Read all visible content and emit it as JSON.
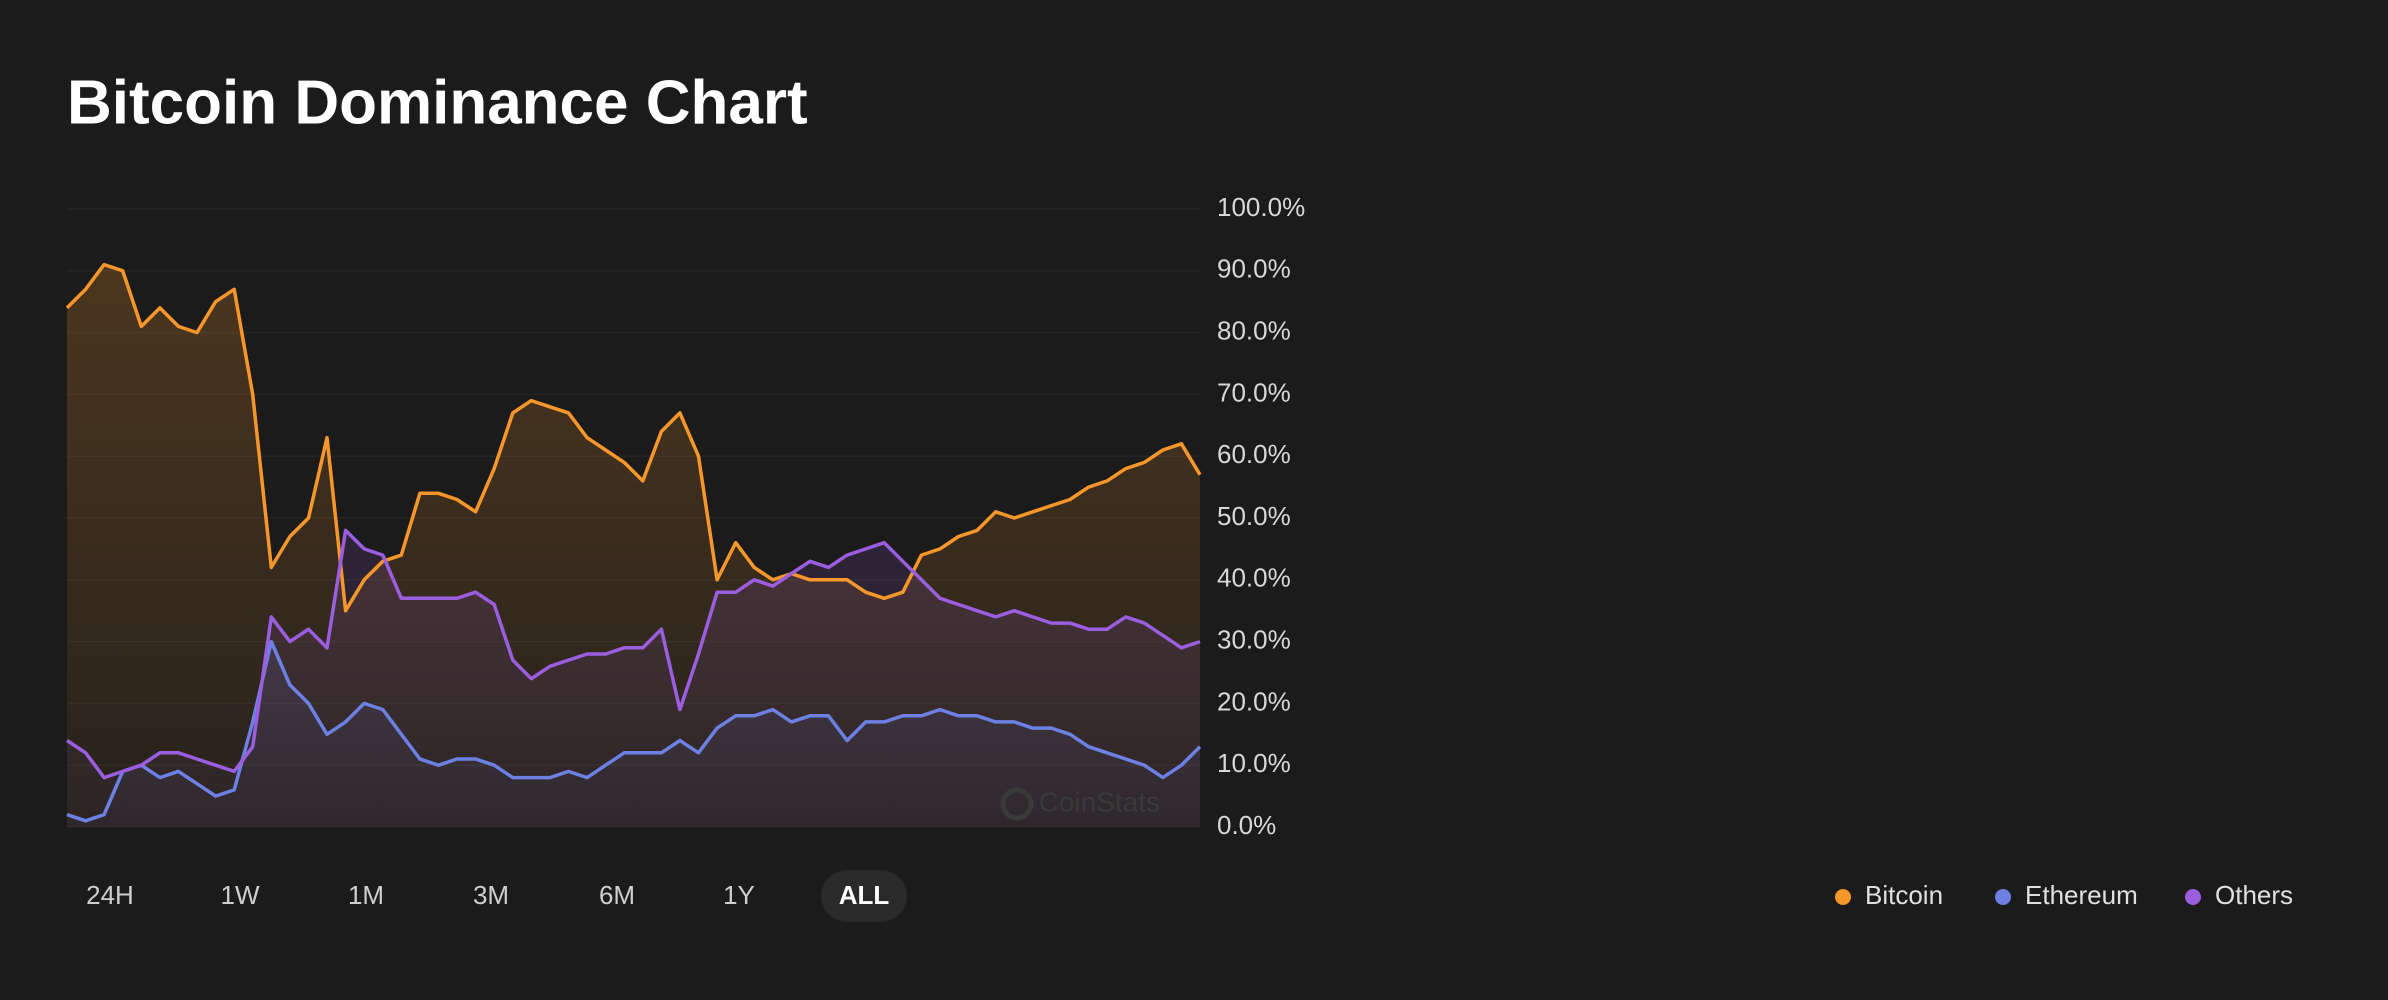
{
  "header": {
    "title": "Bitcoin Dominance Chart"
  },
  "chart_data": {
    "type": "line",
    "watermark": "CoinStats",
    "categories": [
      null,
      null,
      null,
      null,
      null,
      null,
      null,
      null,
      null,
      null,
      null,
      null,
      null,
      null,
      null,
      null,
      null,
      null,
      null,
      null,
      null,
      null,
      null,
      null,
      null,
      null,
      null,
      null,
      null,
      null,
      null,
      null,
      null,
      null,
      null,
      null,
      null,
      null,
      null,
      null,
      null,
      null,
      null,
      null,
      null,
      null,
      null,
      null,
      null,
      null,
      null,
      null,
      null,
      null,
      null,
      null,
      null,
      null,
      null,
      null,
      null,
      null
    ],
    "ylim": [
      0,
      100
    ],
    "yticks": [
      {
        "value": 0,
        "label": "0.0%"
      },
      {
        "value": 10,
        "label": "10.0%"
      },
      {
        "value": 20,
        "label": "20.0%"
      },
      {
        "value": 30,
        "label": "30.0%"
      },
      {
        "value": 40,
        "label": "40.0%"
      },
      {
        "value": 50,
        "label": "50.0%"
      },
      {
        "value": 60,
        "label": "60.0%"
      },
      {
        "value": 70,
        "label": "70.0%"
      },
      {
        "value": 80,
        "label": "80.0%"
      },
      {
        "value": 90,
        "label": "90.0%"
      },
      {
        "value": 100,
        "label": "100.0%"
      }
    ],
    "grid": true,
    "legend": "bottom-right",
    "area": true,
    "series": [
      {
        "name": "Bitcoin",
        "color": "#f7962a",
        "values": [
          84,
          87,
          91,
          90,
          81,
          84,
          81,
          80,
          85,
          87,
          70,
          42,
          47,
          50,
          63,
          35,
          40,
          43,
          44,
          54,
          54,
          53,
          51,
          58,
          67,
          69,
          68,
          67,
          63,
          61,
          59,
          56,
          64,
          67,
          60,
          40,
          46,
          42,
          40,
          41,
          40,
          40,
          40,
          38,
          37,
          38,
          44,
          45,
          47,
          48,
          51,
          50,
          51,
          52,
          53,
          55,
          56,
          58,
          59,
          61,
          62,
          57
        ]
      },
      {
        "name": "Ethereum",
        "color": "#6d80e3",
        "values": [
          2,
          1,
          2,
          9,
          10,
          8,
          9,
          7,
          5,
          6,
          17,
          30,
          23,
          20,
          15,
          17,
          20,
          19,
          15,
          11,
          10,
          11,
          11,
          10,
          8,
          8,
          8,
          9,
          8,
          10,
          12,
          12,
          12,
          14,
          12,
          16,
          18,
          18,
          19,
          17,
          18,
          18,
          14,
          17,
          17,
          18,
          18,
          19,
          18,
          18,
          17,
          17,
          16,
          16,
          15,
          13,
          12,
          11,
          10,
          8,
          10,
          13
        ]
      },
      {
        "name": "Others",
        "color": "#9b5ee0",
        "values": [
          14,
          12,
          8,
          9,
          10,
          12,
          12,
          11,
          10,
          9,
          13,
          34,
          30,
          32,
          29,
          48,
          45,
          44,
          37,
          37,
          37,
          37,
          38,
          36,
          27,
          24,
          26,
          27,
          28,
          28,
          29,
          29,
          32,
          19,
          28,
          38,
          38,
          40,
          39,
          41,
          43,
          42,
          44,
          45,
          46,
          43,
          40,
          37,
          36,
          35,
          34,
          35,
          34,
          33,
          33,
          32,
          32,
          34,
          33,
          31,
          29,
          30
        ]
      }
    ]
  },
  "range_buttons": {
    "options": [
      "24H",
      "1W",
      "1M",
      "3M",
      "6M",
      "1Y",
      "ALL"
    ],
    "selected": 6
  }
}
